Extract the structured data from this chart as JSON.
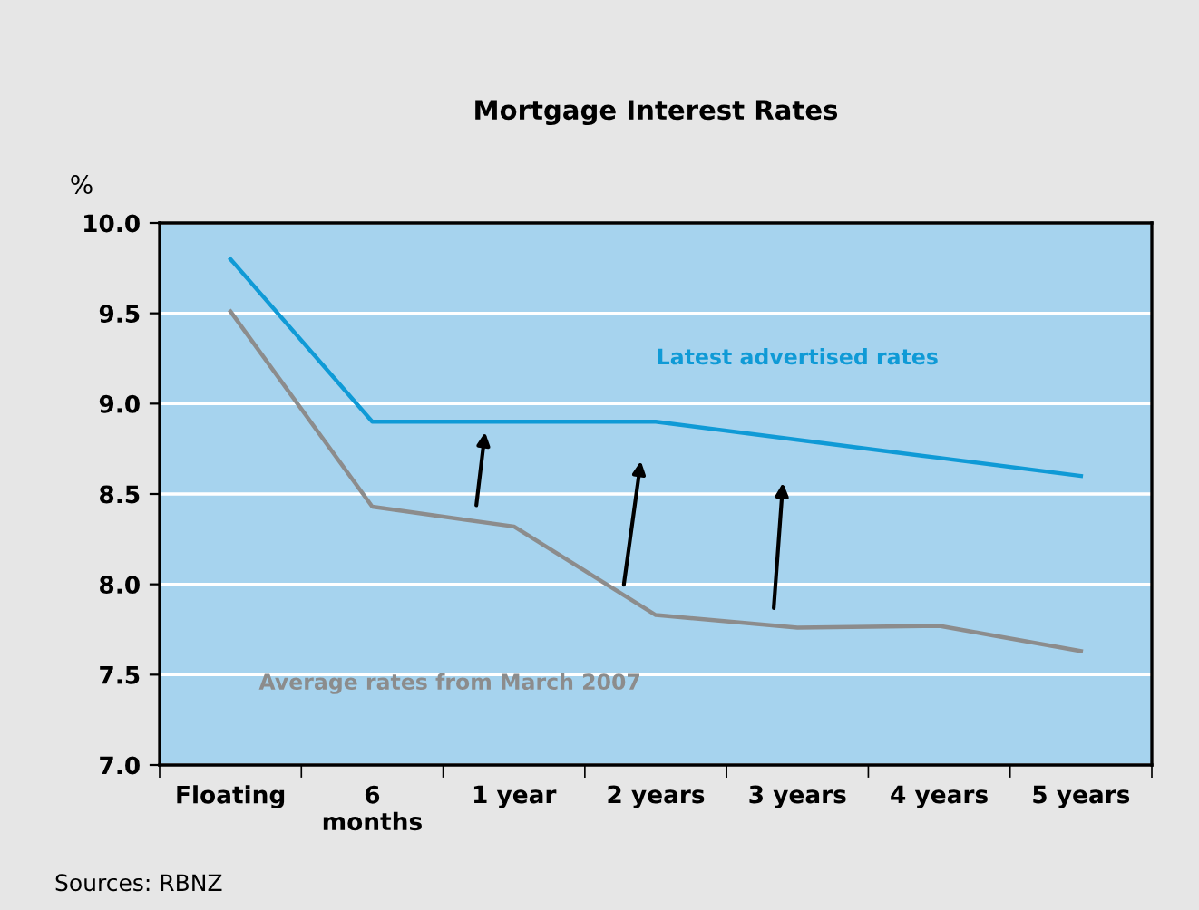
{
  "chart_data": {
    "type": "line",
    "title": "Mortgage Interest Rates",
    "ylabel": "%",
    "categories": [
      "Floating",
      "6\nmonths",
      "1 year",
      "2 years",
      "3 years",
      "4 years",
      "5 years"
    ],
    "series": [
      {
        "name": "Latest advertised rates",
        "color": "#0f9ad6",
        "values": [
          9.8,
          8.9,
          8.9,
          8.9,
          8.8,
          8.7,
          8.6
        ]
      },
      {
        "name": "Average rates from March 2007",
        "color": "#8c8c8c",
        "values": [
          9.51,
          8.43,
          8.32,
          7.83,
          7.76,
          7.77,
          7.63
        ]
      }
    ],
    "ylim": [
      7.0,
      10.0
    ],
    "yticks": [
      {
        "value": 7.0,
        "label": "7.0"
      },
      {
        "value": 7.5,
        "label": "7.5"
      },
      {
        "value": 8.0,
        "label": "8.0"
      },
      {
        "value": 8.5,
        "label": "8.5"
      },
      {
        "value": 9.0,
        "label": "9.0"
      },
      {
        "value": 9.5,
        "label": "9.5"
      },
      {
        "value": 10.0,
        "label": "10.0"
      }
    ],
    "grid": "y",
    "legend": false,
    "annotations": [
      "Sources: RBNZ"
    ]
  }
}
